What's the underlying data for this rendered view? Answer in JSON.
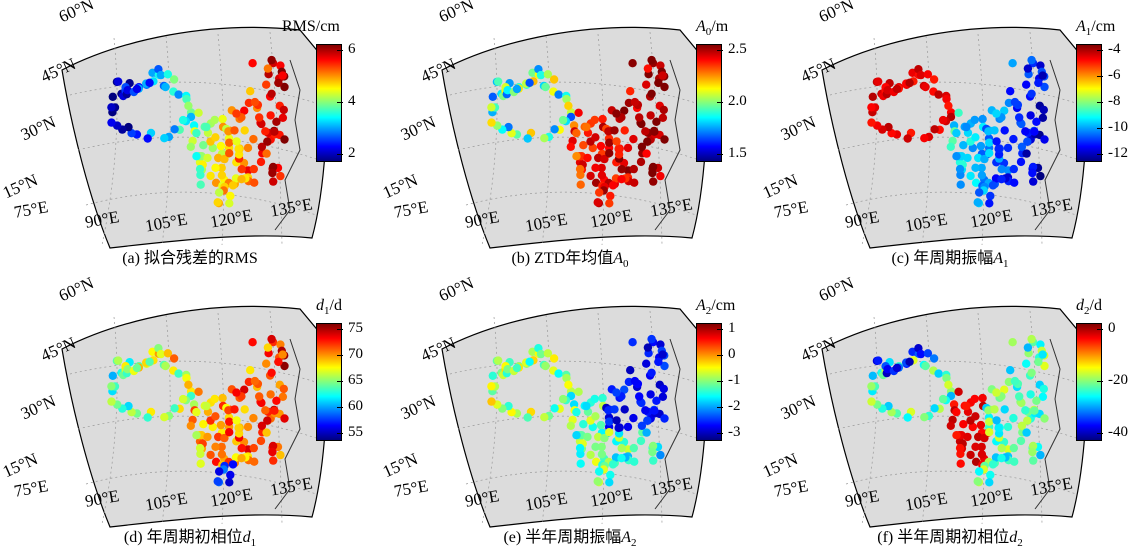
{
  "axes": {
    "lat_labels": [
      "60°N",
      "45°N",
      "30°N",
      "15°N"
    ],
    "lon_labels": [
      "75°E",
      "90°E",
      "105°E",
      "120°E",
      "135°E"
    ]
  },
  "panels": [
    {
      "id": "a",
      "caption": "(a) 拟合残差的RMS",
      "caption_symbol": "",
      "caption_sub": "",
      "cbar_title_prefix": "RMS/cm",
      "cbar_title_symbol": "",
      "cbar_title_sub": "",
      "cbar_ticks": [
        "6",
        "4",
        "2"
      ],
      "colormap": "jet",
      "field": "rms"
    },
    {
      "id": "b",
      "caption": "(b) ZTD年均值",
      "caption_symbol": "A",
      "caption_sub": "0",
      "cbar_title_prefix": "",
      "cbar_title_symbol": "A",
      "cbar_title_sub": "0",
      "cbar_title_suffix": "/m",
      "cbar_ticks": [
        "2.5",
        "2.0",
        "1.5"
      ],
      "colormap": "jet",
      "field": "a0"
    },
    {
      "id": "c",
      "caption": "(c) 年周期振幅",
      "caption_symbol": "A",
      "caption_sub": "1",
      "cbar_title_prefix": "",
      "cbar_title_symbol": "A",
      "cbar_title_sub": "1",
      "cbar_title_suffix": "/cm",
      "cbar_ticks": [
        "-4",
        "-6",
        "-8",
        "-10",
        "-12"
      ],
      "colormap": "jet",
      "field": "a1"
    },
    {
      "id": "d",
      "caption": "(d) 年周期初相位",
      "caption_symbol": "d",
      "caption_sub": "1",
      "cbar_title_prefix": "",
      "cbar_title_symbol": "d",
      "cbar_title_sub": "1",
      "cbar_title_suffix": "/d",
      "cbar_ticks": [
        "75",
        "70",
        "65",
        "60",
        "55"
      ],
      "colormap": "jet",
      "field": "d1"
    },
    {
      "id": "e",
      "caption": "(e) 半年周期振幅",
      "caption_symbol": "A",
      "caption_sub": "2",
      "cbar_title_prefix": "",
      "cbar_title_symbol": "A",
      "cbar_title_sub": "2",
      "cbar_title_suffix": "/cm",
      "cbar_ticks": [
        "1",
        "0",
        "-1",
        "-2",
        "-3"
      ],
      "colormap": "jet",
      "field": "a2"
    },
    {
      "id": "f",
      "caption": "(f) 半年周期初相位",
      "caption_symbol": "d",
      "caption_sub": "2",
      "cbar_title_prefix": "",
      "cbar_title_symbol": "d",
      "cbar_title_sub": "2",
      "cbar_title_suffix": "/d",
      "cbar_ticks": [
        "0",
        "-20",
        "-40"
      ],
      "colormap": "jet",
      "field": "d2"
    }
  ],
  "colors": {
    "map_fill": "#dcdcdc",
    "map_border": "#000000",
    "graticule": "#999999"
  }
}
